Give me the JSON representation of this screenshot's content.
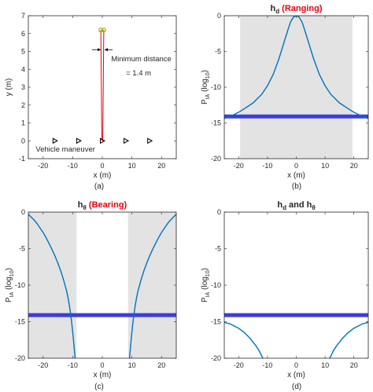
{
  "chart_data": [
    {
      "type": "scatter",
      "panel_label": "(a)",
      "xlabel": "x (m)",
      "ylabel": "y (m)",
      "xlim": [
        -25,
        25
      ],
      "ylim": [
        -1,
        7
      ],
      "xticks": [
        -20,
        -10,
        0,
        10,
        20
      ],
      "yticks": [
        -1,
        0,
        1,
        2,
        3,
        4,
        5,
        6,
        7
      ],
      "xtick_labels": [
        "-20",
        "-10",
        "0",
        "10",
        "20"
      ],
      "ytick_labels": [
        "-1",
        "0",
        "1",
        "2",
        "3",
        "4",
        "5",
        "6",
        "7"
      ],
      "vehicle_positions": {
        "x": [
          -16,
          -8,
          0,
          8,
          16
        ],
        "y": [
          0,
          0,
          0,
          0,
          0
        ],
        "marker": "triangle-right"
      },
      "vehicle_label": "Vehicle maneuver",
      "sensor_points": {
        "x": [
          -0.5,
          0.5
        ],
        "y": [
          6.2,
          6.2
        ],
        "marker": "circle",
        "color": "#8ab800"
      },
      "ray_lines": {
        "color": "#e8000b",
        "segments": [
          {
            "x": [
              -0.5,
              -0.15
            ],
            "y": [
              6.2,
              0
            ]
          },
          {
            "x": [
              0.5,
              0.15
            ],
            "y": [
              6.2,
              0
            ]
          }
        ]
      },
      "annotation": {
        "line1": "Minimum distance",
        "line2": "= 1.4 m",
        "arrow_y": 5.1,
        "arrow_x": [
          -3.5,
          -0.5,
          0.8,
          3.5
        ]
      }
    },
    {
      "type": "line",
      "panel_label": "(b)",
      "title": "h",
      "title_subscript": "d",
      "title_red": "(Ranging)",
      "xlabel": "x (m)",
      "ylabel_main": "P",
      "ylabel_sub": "IA",
      "ylabel_unit_pre": "(log",
      "ylabel_unit_sub": "10",
      "ylabel_unit_post": ")",
      "xlim": [
        -25,
        25
      ],
      "ylim": [
        -20,
        0
      ],
      "xticks": [
        -20,
        -10,
        0,
        10,
        20
      ],
      "yticks": [
        -20,
        -15,
        -10,
        -5,
        0
      ],
      "xtick_labels": [
        "-20",
        "-10",
        "0",
        "10",
        "20"
      ],
      "ytick_labels": [
        "-20",
        "-15",
        "-10",
        "-5",
        "0"
      ],
      "shaded_regions": [
        [
          -19.5,
          19.5
        ]
      ],
      "threshold": -14.1,
      "series": [
        {
          "x": [
            -25,
            -22,
            -20,
            -18,
            -15,
            -12,
            -10,
            -8,
            -6,
            -4,
            -3,
            -2,
            -1,
            0,
            1,
            2,
            3,
            4,
            6,
            8,
            10,
            12,
            15,
            18,
            20,
            22,
            25
          ],
          "values": [
            -14.4,
            -13.9,
            -13.5,
            -13.0,
            -12.2,
            -11.0,
            -9.8,
            -8.2,
            -6.0,
            -3.4,
            -2.1,
            -0.9,
            -0.2,
            0.0,
            -0.2,
            -0.9,
            -2.1,
            -3.4,
            -6.0,
            -8.2,
            -9.8,
            -11.0,
            -12.2,
            -13.0,
            -13.5,
            -13.9,
            -14.4
          ]
        }
      ]
    },
    {
      "type": "line",
      "panel_label": "(c)",
      "title": "h",
      "title_subscript": "θ",
      "title_red": "(Bearing)",
      "xlabel": "x (m)",
      "ylabel_main": "P",
      "ylabel_sub": "IA",
      "ylabel_unit_pre": "(log",
      "ylabel_unit_sub": "10",
      "ylabel_unit_post": ")",
      "xlim": [
        -25,
        25
      ],
      "ylim": [
        -20,
        0
      ],
      "xticks": [
        -20,
        -10,
        0,
        10,
        20
      ],
      "yticks": [
        -20,
        -15,
        -10,
        -5,
        0
      ],
      "xtick_labels": [
        "-20",
        "-10",
        "0",
        "10",
        "20"
      ],
      "ytick_labels": [
        "-20",
        "-15",
        "-10",
        "-5",
        "0"
      ],
      "shaded_regions": [
        [
          -25,
          -8.7
        ],
        [
          8.7,
          25
        ]
      ],
      "threshold": -14.1,
      "series": [
        {
          "x": [
            -25,
            -24,
            -23,
            -22,
            -21,
            -20,
            -19,
            -18,
            -17,
            -16,
            -15,
            -14,
            -13,
            -12,
            -11.5,
            -11,
            -10.5,
            -10,
            -9.5,
            -9.2
          ],
          "values": [
            -0.3,
            -0.7,
            -1.1,
            -1.6,
            -2.2,
            -2.8,
            -3.5,
            -4.3,
            -5.1,
            -6.0,
            -7.0,
            -8.1,
            -9.4,
            -10.9,
            -11.9,
            -13.1,
            -14.6,
            -16.4,
            -18.6,
            -20.0
          ]
        },
        {
          "x": [
            9.2,
            9.5,
            10,
            10.5,
            11,
            11.5,
            12,
            13,
            14,
            15,
            16,
            17,
            18,
            19,
            20,
            21,
            22,
            23,
            24,
            25
          ],
          "values": [
            -20.0,
            -18.6,
            -16.4,
            -14.6,
            -13.1,
            -11.9,
            -10.9,
            -9.4,
            -8.1,
            -7.0,
            -6.0,
            -5.1,
            -4.3,
            -3.5,
            -2.8,
            -2.2,
            -1.6,
            -1.1,
            -0.7,
            -0.3
          ]
        }
      ]
    },
    {
      "type": "line",
      "panel_label": "(d)",
      "title": "h",
      "title_subscript": "d",
      "title_and": "and h",
      "title_subscript2": "θ",
      "xlabel": "x (m)",
      "ylabel_main": "P",
      "ylabel_sub": "IA",
      "ylabel_unit_pre": "(log",
      "ylabel_unit_sub": "10",
      "ylabel_unit_post": ")",
      "xlim": [
        -25,
        25
      ],
      "ylim": [
        -20,
        0
      ],
      "xticks": [
        -20,
        -10,
        0,
        10,
        20
      ],
      "yticks": [
        -20,
        -15,
        -10,
        -5,
        0
      ],
      "xtick_labels": [
        "-20",
        "-10",
        "0",
        "10",
        "20"
      ],
      "ytick_labels": [
        "-20",
        "-15",
        "-10",
        "-5",
        "0"
      ],
      "shaded_regions": [],
      "threshold": -14.1,
      "series": [
        {
          "x": [
            -25,
            -24,
            -23,
            -22,
            -21,
            -20,
            -19,
            -18,
            -17,
            -16,
            -15,
            -14,
            -13,
            -12.5,
            -12,
            -11.6
          ],
          "values": [
            -15.1,
            -15.2,
            -15.3,
            -15.5,
            -15.7,
            -15.9,
            -16.2,
            -16.5,
            -16.9,
            -17.3,
            -17.8,
            -18.3,
            -18.9,
            -19.3,
            -19.7,
            -20.0
          ]
        },
        {
          "x": [
            11.6,
            12,
            12.5,
            13,
            14,
            15,
            16,
            17,
            18,
            19,
            20,
            21,
            22,
            23,
            24,
            25
          ],
          "values": [
            -20.0,
            -19.7,
            -19.3,
            -18.9,
            -18.3,
            -17.8,
            -17.3,
            -16.9,
            -16.5,
            -16.2,
            -15.9,
            -15.7,
            -15.5,
            -15.3,
            -15.2,
            -15.1
          ]
        }
      ]
    }
  ],
  "colors": {
    "curve": "#0072bd",
    "threshold": "#3d3ddc",
    "shade": "#e3e3e3",
    "ray": "#e8000b",
    "sensor": "#8ab800",
    "axis": "#262626",
    "title_red": "#e8000b"
  }
}
